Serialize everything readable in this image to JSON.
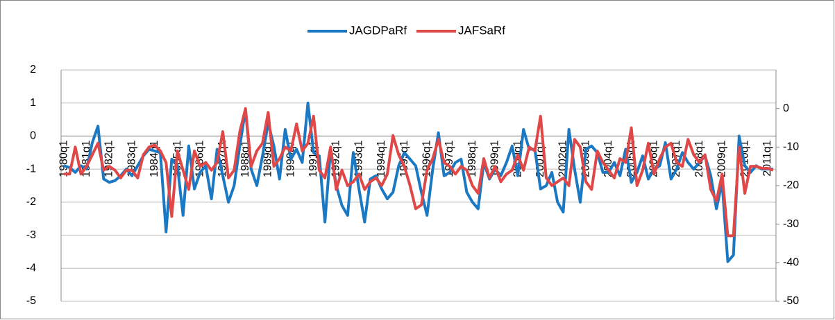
{
  "chart_data": {
    "type": "line",
    "categories": [
      "1980q1",
      null,
      null,
      null,
      "1981q1",
      null,
      null,
      null,
      "1982q1",
      null,
      null,
      null,
      "1983q1",
      null,
      null,
      null,
      "1984q1",
      null,
      null,
      null,
      "1985q1",
      null,
      null,
      null,
      "1986q1",
      null,
      null,
      null,
      "1987q1",
      null,
      null,
      null,
      "1988q1",
      null,
      null,
      null,
      "1989q1",
      null,
      null,
      null,
      "1990q1",
      null,
      null,
      null,
      "1991q1",
      null,
      null,
      null,
      "1992q1",
      null,
      null,
      null,
      "1993q1",
      null,
      null,
      null,
      "1994q1",
      null,
      null,
      null,
      "1995q1",
      null,
      null,
      null,
      "1996q1",
      null,
      null,
      null,
      "1997q1",
      null,
      null,
      null,
      "1998q1",
      null,
      null,
      null,
      "1999q1",
      null,
      null,
      null,
      "2000q1",
      null,
      null,
      null,
      "2001q1",
      null,
      null,
      null,
      "2002q1",
      null,
      null,
      null,
      "2003q1",
      null,
      null,
      null,
      "2004q1",
      null,
      null,
      null,
      "2005q1",
      null,
      null,
      null,
      "2006q1",
      null,
      null,
      null,
      "2007q1",
      null,
      null,
      null,
      "2008q1",
      null,
      null,
      null,
      "2009q1",
      null,
      null,
      null,
      "2010q1",
      null,
      null,
      null,
      "2011q1",
      null
    ],
    "series": [
      {
        "name": "JAGDPaRf",
        "color": "#1b78c2",
        "values": [
          -0.9,
          -0.95,
          -1.1,
          -0.9,
          -1.0,
          -0.2,
          0.3,
          -1.3,
          -1.4,
          -1.35,
          -1.2,
          -1.0,
          -1.2,
          -0.9,
          -0.6,
          -0.4,
          -0.45,
          -0.5,
          -2.9,
          -0.7,
          -0.9,
          -2.4,
          -0.3,
          -1.6,
          -1.1,
          -0.9,
          -1.9,
          -0.4,
          -1.2,
          -2.0,
          -1.5,
          -0.3,
          0.8,
          -1.0,
          -1.5,
          -0.6,
          0.4,
          -0.3,
          -1.3,
          0.2,
          -0.7,
          -0.4,
          -0.8,
          1.0,
          -0.5,
          -0.6,
          -2.6,
          -0.4,
          -1.5,
          -2.1,
          -2.4,
          -0.5,
          -1.6,
          -2.6,
          -1.3,
          -1.2,
          -1.6,
          -1.9,
          -1.7,
          -0.9,
          -0.5,
          -0.7,
          -0.9,
          -1.7,
          -2.4,
          -1.0,
          0.1,
          -1.2,
          -1.1,
          -0.8,
          -0.7,
          -1.7,
          -2.0,
          -2.2,
          -0.8,
          -1.3,
          -1.0,
          -1.2,
          -0.8,
          -0.3,
          -1.2,
          0.2,
          -0.4,
          -0.4,
          -1.6,
          -1.5,
          -1.1,
          -2.0,
          -2.3,
          0.2,
          -1.0,
          -2.0,
          -0.4,
          -0.3,
          -0.5,
          -1.1,
          -1.1,
          -0.8,
          -1.2,
          -0.4,
          -1.4,
          -1.1,
          -0.6,
          -1.3,
          -1.0,
          -0.9,
          -0.2,
          -1.3,
          -1.0,
          -0.5,
          -0.8,
          -1.0,
          -0.8,
          -0.6,
          -1.2,
          -2.2,
          -1.4,
          -3.8,
          -3.6,
          0.0,
          -0.9,
          -1.1,
          -0.9,
          -1.0,
          -1.0,
          -1.0
        ]
      },
      {
        "name": "JAFSaRf",
        "color": "#e04848",
        "axis": "y2",
        "values": [
          -17,
          -17,
          -10,
          -17,
          -15,
          -12,
          -9,
          -16,
          -15,
          -16,
          -18,
          -16,
          -16,
          -18,
          -12,
          -10,
          -9.5,
          -11,
          -14,
          -28,
          -11,
          -16,
          -21,
          -11,
          -15,
          -14,
          -16,
          -14,
          -6,
          -18,
          -16,
          -6,
          0,
          -15,
          -11,
          -9,
          -1,
          -15,
          -13,
          -10,
          -11,
          -4,
          -11,
          -9,
          -2,
          -16,
          -18,
          -10,
          -21,
          -16,
          -20,
          -19,
          -17,
          -21,
          -19,
          -18,
          -20,
          -17,
          -7,
          -12,
          -15,
          -20,
          -26,
          -25,
          -16,
          -13,
          -8,
          -14,
          -15,
          -17,
          -15,
          -16,
          -20,
          -22,
          -13,
          -18,
          -15,
          -19,
          -17,
          -16,
          -12,
          -16,
          -10,
          -11,
          -2,
          -18,
          -20,
          -19,
          -18,
          -20,
          -8,
          -10,
          -19,
          -21,
          -11,
          -14,
          -16,
          -18,
          -13,
          -14,
          -5,
          -20,
          -16,
          -9,
          -17,
          -13,
          -10,
          -9,
          -14,
          -15,
          -8,
          -12,
          -14,
          -12,
          -21,
          -24,
          -17,
          -33,
          -33,
          -10,
          -22,
          -15,
          -15,
          -15.5,
          -15.5,
          -16
        ]
      }
    ],
    "ylim": [
      -5,
      2
    ],
    "yticks": [
      -5,
      -4,
      -3,
      -2,
      -1,
      0,
      1,
      2
    ],
    "y2lim": [
      -50,
      10
    ],
    "y2ticks": [
      -50,
      -40,
      -30,
      -20,
      -10,
      0
    ],
    "grid": true,
    "legend": "top"
  }
}
